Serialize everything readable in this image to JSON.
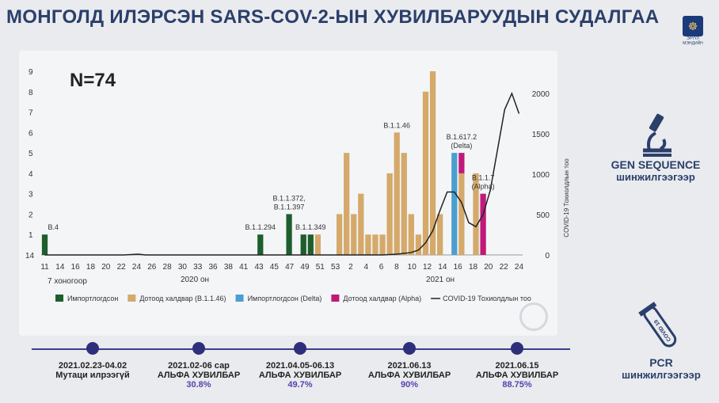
{
  "header": {
    "title": "МОНГОЛД ИЛЭРСЭН SARS-COV-2-ЫН ХУВИЛБАРУУДЫН СУДАЛГАА",
    "logo_text": "ЭРҮҮЛ МЭНДИЙН"
  },
  "n_label": "N=74",
  "side_panel": {
    "gen_title": "GEN SEQUENCE",
    "gen_sub": "шинжилгээгээр",
    "pcr_title": "PCR",
    "pcr_sub": "шинжилгээгээр",
    "tube_label": "COVID 19"
  },
  "timeline": [
    {
      "date": "2021.02.23-04.02",
      "desc": "Мутаци илрээгүй",
      "pct": ""
    },
    {
      "date": "2021.02-06 сар",
      "desc": "АЛЬФА ХУВИЛБАР",
      "pct": "30.8%"
    },
    {
      "date": "2021.04.05-06.13",
      "desc": "АЛЬФА ХУВИЛБАР",
      "pct": "49.7%"
    },
    {
      "date": "2021.06.13",
      "desc": "АЛЬФА ХУВИЛБАР",
      "pct": "90%"
    },
    {
      "date": "2021.06.15",
      "desc": "АЛЬФА ХУВИЛБАР",
      "pct": "88.75%"
    }
  ],
  "chart_data": {
    "type": "bar",
    "categories": [
      "11",
      "12",
      "13",
      "14",
      "15",
      "16",
      "17",
      "18",
      "19",
      "20",
      "21",
      "22",
      "23",
      "24",
      "25",
      "26",
      "27",
      "28",
      "29",
      "30",
      "31",
      "32",
      "33",
      "34",
      "35",
      "36",
      "37",
      "38",
      "39",
      "40",
      "41",
      "42",
      "43",
      "44",
      "45",
      "46",
      "47",
      "48",
      "49",
      "50",
      "51",
      "52",
      "53",
      "1",
      "2",
      "3",
      "4",
      "5",
      "6",
      "7",
      "8",
      "9",
      "10",
      "11",
      "12",
      "13",
      "14",
      "15",
      "16",
      "17",
      "18",
      "19",
      "20",
      "21",
      "22",
      "23",
      "24"
    ],
    "tick_labels_shown": [
      "11",
      "14",
      "16",
      "18",
      "20",
      "22",
      "24",
      "26",
      "28",
      "30",
      "33",
      "36",
      "38",
      "41",
      "43",
      "45",
      "47",
      "49",
      "51",
      "53",
      "2",
      "4",
      "6",
      "8",
      "10",
      "12",
      "14",
      "16",
      "18",
      "20",
      "22",
      "24"
    ],
    "series": [
      {
        "name": "Импортлогдсон",
        "color": "#1e5e2e",
        "values": [
          1,
          0,
          0,
          0,
          0,
          0,
          0,
          0,
          0,
          0,
          0,
          0,
          0,
          0,
          0,
          0,
          0,
          0,
          0,
          0,
          0,
          0,
          0,
          0,
          0,
          0,
          0,
          0,
          0,
          0,
          1,
          0,
          0,
          0,
          2,
          0,
          1,
          1,
          0,
          0,
          0,
          0,
          0,
          0,
          0,
          0,
          0,
          0,
          0,
          0,
          0,
          0,
          0,
          0,
          0,
          0,
          0,
          0,
          0,
          0,
          0,
          0,
          0,
          0,
          0,
          0,
          0
        ]
      },
      {
        "name": "Дотоод халдвар (B.1.1.46)",
        "color": "#d4a96a",
        "values": [
          0,
          0,
          0,
          0,
          0,
          0,
          0,
          0,
          0,
          0,
          0,
          0,
          0,
          0,
          0,
          0,
          0,
          0,
          0,
          0,
          0,
          0,
          0,
          0,
          0,
          0,
          0,
          0,
          0,
          0,
          0,
          0,
          0,
          0,
          0,
          0,
          0,
          0,
          1,
          0,
          0,
          2,
          5,
          2,
          3,
          1,
          1,
          1,
          4,
          6,
          5,
          2,
          1,
          8,
          9,
          2,
          0,
          0,
          4,
          0,
          4,
          0,
          0,
          0,
          0,
          0,
          0
        ]
      },
      {
        "name": "Импортлогдсон (Delta)",
        "color": "#4a9fd0",
        "values": [
          0,
          0,
          0,
          0,
          0,
          0,
          0,
          0,
          0,
          0,
          0,
          0,
          0,
          0,
          0,
          0,
          0,
          0,
          0,
          0,
          0,
          0,
          0,
          0,
          0,
          0,
          0,
          0,
          0,
          0,
          0,
          0,
          0,
          0,
          0,
          0,
          0,
          0,
          0,
          0,
          0,
          0,
          0,
          0,
          0,
          0,
          0,
          0,
          0,
          0,
          0,
          0,
          0,
          0,
          0,
          0,
          0,
          5,
          0,
          0,
          0,
          0,
          0,
          0,
          0,
          0,
          0
        ]
      },
      {
        "name": "Дотоод халдвар (Alpha)",
        "color": "#c0197a",
        "values": [
          0,
          0,
          0,
          0,
          0,
          0,
          0,
          0,
          0,
          0,
          0,
          0,
          0,
          0,
          0,
          0,
          0,
          0,
          0,
          0,
          0,
          0,
          0,
          0,
          0,
          0,
          0,
          0,
          0,
          0,
          0,
          0,
          0,
          0,
          0,
          0,
          0,
          0,
          0,
          0,
          0,
          0,
          0,
          0,
          0,
          0,
          0,
          0,
          0,
          0,
          0,
          0,
          0,
          0,
          0,
          0,
          0,
          0,
          1,
          0,
          0,
          3,
          0,
          0,
          0,
          0,
          0
        ]
      }
    ],
    "line_series": {
      "name": "COVID-19 Тохиолдлын тоо",
      "color": "#222222",
      "axis": "right",
      "values": [
        0,
        0,
        0,
        0,
        0,
        0,
        0,
        0,
        0,
        0,
        0,
        0,
        5,
        10,
        0,
        0,
        0,
        0,
        0,
        0,
        0,
        0,
        0,
        0,
        0,
        0,
        0,
        0,
        0,
        0,
        0,
        0,
        0,
        0,
        0,
        0,
        0,
        0,
        0,
        0,
        0,
        0,
        0,
        0,
        0,
        0,
        0,
        0,
        5,
        10,
        20,
        30,
        60,
        150,
        300,
        550,
        780,
        780,
        650,
        400,
        350,
        500,
        800,
        1300,
        1800,
        2000,
        1750
      ]
    },
    "annotations": [
      {
        "text": "B.4",
        "category_index": 0
      },
      {
        "text": "B.1.1.294",
        "category_index": 30
      },
      {
        "text": "B.1.1.372,",
        "category_index": 34
      },
      {
        "text": "B.1.1.397",
        "category_index": 34
      },
      {
        "text": "B.1.1.349",
        "category_index": 37
      },
      {
        "text": "B.1.1.46",
        "category_index": 49
      },
      {
        "text": "B.1.617.2",
        "category_index": 58
      },
      {
        "text": "(Delta)",
        "category_index": 58
      },
      {
        "text": "B.1.1.7",
        "category_index": 61
      },
      {
        "text": "(Alpha)",
        "category_index": 61
      }
    ],
    "xlabel_left": "7 хоногоор",
    "period_labels": [
      "2020 он",
      "2021 он"
    ],
    "ylabel_right": "COVID-19 Тохиолдлын тоо",
    "y_ticks": [
      "1",
      "2",
      "3",
      "4",
      "5",
      "6",
      "7",
      "8",
      "9"
    ],
    "y_base_label": "14",
    "ylim": [
      0,
      9
    ],
    "y2_ticks": [
      "0",
      "500",
      "1000",
      "1500",
      "2000"
    ],
    "y2lim": [
      0,
      2100
    ],
    "grid": false,
    "legend_position": "bottom",
    "legend": [
      {
        "label": "Импортлогдсон",
        "color": "#1e5e2e",
        "kind": "box"
      },
      {
        "label": "Дотоод халдвар (B.1.1.46)",
        "color": "#d4a96a",
        "kind": "box"
      },
      {
        "label": "Импортлогдсон (Delta)",
        "color": "#4a9fd0",
        "kind": "box"
      },
      {
        "label": "Дотоод халдвар (Alpha)",
        "color": "#c0197a",
        "kind": "box"
      },
      {
        "label": "COVID-19 Тохиолдлын тоо",
        "color": "#222222",
        "kind": "line"
      }
    ]
  }
}
